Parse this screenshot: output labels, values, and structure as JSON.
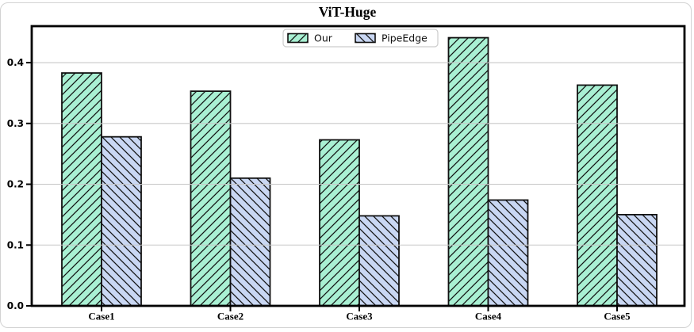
{
  "chart_data": {
    "type": "bar",
    "title": "ViT-Huge",
    "categories": [
      "Case1",
      "Case2",
      "Case3",
      "Case4",
      "Case5"
    ],
    "series": [
      {
        "name": "Our",
        "color": "#a9f0d3",
        "hatch": "/",
        "values": [
          0.383,
          0.353,
          0.273,
          0.441,
          0.363
        ]
      },
      {
        "name": "PipeEdge",
        "color": "#c9d7f3",
        "hatch": "\\",
        "values": [
          0.278,
          0.21,
          0.148,
          0.174,
          0.15
        ]
      }
    ],
    "xlabel": "",
    "ylabel": "",
    "ylim": [
      0,
      0.46
    ],
    "yticks": [
      "0.0",
      "0.1",
      "0.2",
      "0.3",
      "0.4"
    ],
    "grid": true,
    "grid_axis": "y",
    "legend_position": "upper center",
    "colors": {
      "bar_edge": "#111111",
      "hatch_line": "#111111",
      "grid_line": "#c8c8c8",
      "frame": "#000000",
      "legend_border": "#cccccc",
      "legend_bg": "#ffffff"
    }
  }
}
